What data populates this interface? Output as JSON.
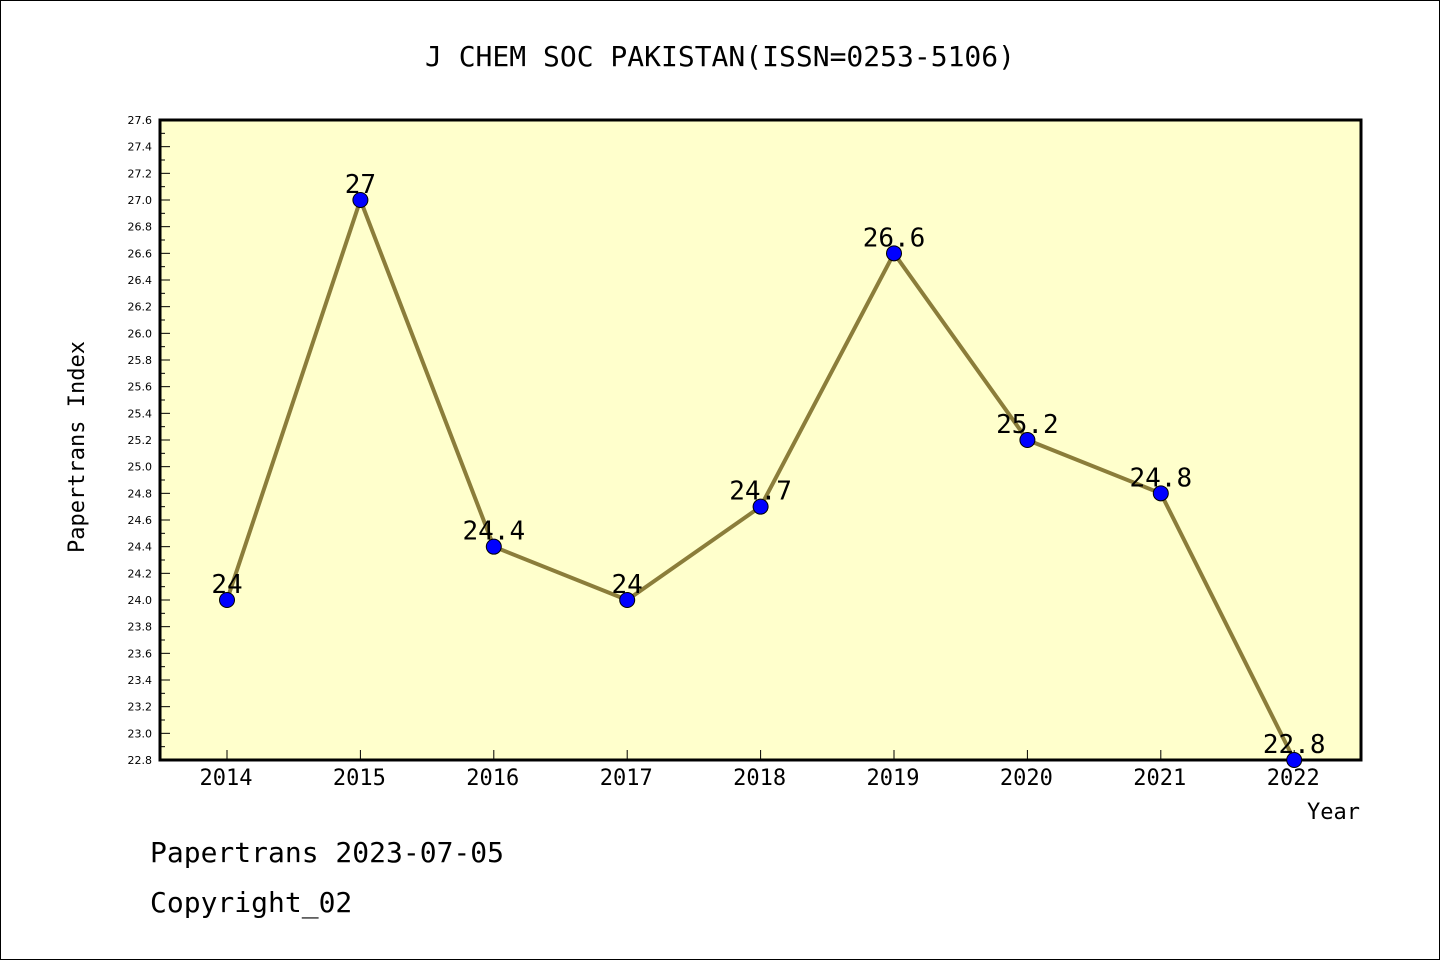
{
  "chart_data": {
    "type": "line",
    "title": "J CHEM SOC PAKISTAN(ISSN=0253-5106)",
    "xlabel": "Year",
    "ylabel": "Papertrans Index",
    "categories": [
      "2014",
      "2015",
      "2016",
      "2017",
      "2018",
      "2019",
      "2020",
      "2021",
      "2022"
    ],
    "series": [
      {
        "values": [
          24,
          27,
          24.4,
          24,
          24.7,
          26.6,
          25.2,
          24.8,
          22.8
        ],
        "labels": [
          "24",
          "27",
          "24.4",
          "24",
          "24.7",
          "26.6",
          "25.2",
          "24.8",
          "22.8"
        ]
      }
    ],
    "ylim": [
      22.8,
      27.6
    ],
    "yticks": [
      "22.8",
      "23.0",
      "23.2",
      "23.4",
      "23.6",
      "23.8",
      "24.0",
      "24.2",
      "24.4",
      "24.6",
      "24.8",
      "25.0",
      "25.2",
      "25.4",
      "25.6",
      "25.8",
      "26.0",
      "26.2",
      "26.4",
      "26.6",
      "26.8",
      "27.0",
      "27.2",
      "27.4",
      "27.6"
    ],
    "grid": false,
    "legend": "none",
    "colors": {
      "plot_background": "#ffffcc",
      "line": "#8b7d3a",
      "marker": "#0000ff"
    }
  },
  "footer": {
    "date_text": "Papertrans 2023-07-05",
    "copyright_text": "Copyright_02"
  }
}
